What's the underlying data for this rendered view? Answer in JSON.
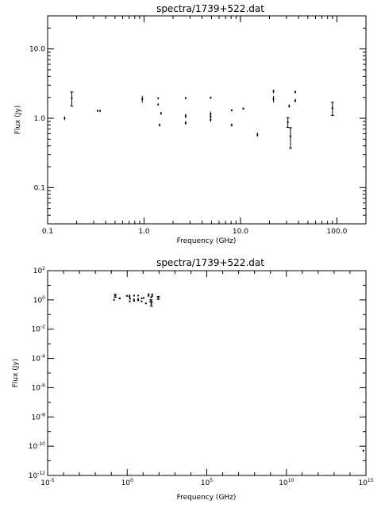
{
  "chart_data": [
    {
      "type": "scatter",
      "title": "spectra/1739+522.dat",
      "xlabel": "Frequency (GHz)",
      "ylabel": "Flux (Jy)",
      "xscale": "log",
      "yscale": "log",
      "xlim": [
        0.1,
        200
      ],
      "ylim": [
        0.03,
        30
      ],
      "xtick_labels": [
        "0.1",
        "1.0",
        "10.0",
        "100.0"
      ],
      "xtick_values": [
        0.1,
        1,
        10,
        100
      ],
      "ytick_labels": [
        "0.1",
        "1.0",
        "10.0"
      ],
      "ytick_values": [
        0.1,
        1,
        10
      ],
      "series": [
        {
          "points": [
            {
              "x": 0.15,
              "y": 1.0,
              "err": 0.06
            },
            {
              "x": 0.178,
              "y": 1.95,
              "err": 0.45
            },
            {
              "x": 0.33,
              "y": 1.28,
              "err": 0.03
            },
            {
              "x": 0.35,
              "y": 1.28,
              "err": 0.03
            },
            {
              "x": 0.96,
              "y": 1.9,
              "err": 0.2
            },
            {
              "x": 1.4,
              "y": 1.95,
              "err": 0.05
            },
            {
              "x": 1.4,
              "y": 1.58,
              "err": 0.05
            },
            {
              "x": 1.45,
              "y": 0.8,
              "err": 0.04
            },
            {
              "x": 1.5,
              "y": 1.18,
              "err": 0.05
            },
            {
              "x": 2.7,
              "y": 1.95,
              "err": 0.06
            },
            {
              "x": 2.7,
              "y": 1.08,
              "err": 0.08
            },
            {
              "x": 2.7,
              "y": 0.86,
              "err": 0.05
            },
            {
              "x": 4.9,
              "y": 1.98,
              "err": 0.07
            },
            {
              "x": 4.9,
              "y": 1.15,
              "err": 0.1
            },
            {
              "x": 4.9,
              "y": 1.05,
              "err": 0.08
            },
            {
              "x": 4.9,
              "y": 0.95,
              "err": 0.06
            },
            {
              "x": 8.1,
              "y": 1.3,
              "err": 0.04
            },
            {
              "x": 8.1,
              "y": 0.8,
              "err": 0.04
            },
            {
              "x": 10.7,
              "y": 1.38,
              "err": 0.05
            },
            {
              "x": 15.0,
              "y": 0.58,
              "err": 0.04
            },
            {
              "x": 22.0,
              "y": 2.45,
              "err": 0.15
            },
            {
              "x": 22.0,
              "y": 1.9,
              "err": 0.2
            },
            {
              "x": 31.0,
              "y": 0.88,
              "err": 0.14
            },
            {
              "x": 32.0,
              "y": 1.5,
              "err": 0.08
            },
            {
              "x": 33.0,
              "y": 0.55,
              "err": 0.18
            },
            {
              "x": 37.0,
              "y": 2.4,
              "err": 0.1
            },
            {
              "x": 37.0,
              "y": 1.8,
              "err": 0.1
            },
            {
              "x": 90.0,
              "y": 1.4,
              "err": 0.3
            }
          ]
        }
      ]
    },
    {
      "type": "scatter",
      "title": "spectra/1739+522.dat",
      "xlabel": "Frequency (GHz)",
      "ylabel": "Flux (Jy)",
      "xscale": "log",
      "yscale": "log",
      "xlim": [
        1e-05,
        1000000000000000.0
      ],
      "ylim": [
        1e-12,
        100
      ],
      "xtick_labels": [
        {
          "base": "10",
          "exp": "-5"
        },
        {
          "base": "10",
          "exp": "0"
        },
        {
          "base": "10",
          "exp": "5"
        },
        {
          "base": "10",
          "exp": "10"
        },
        {
          "base": "10",
          "exp": "15"
        }
      ],
      "xtick_values": [
        1e-05,
        1,
        100000.0,
        10000000000.0,
        1000000000000000.0
      ],
      "ytick_labels": [
        {
          "base": "10",
          "exp": "2"
        },
        {
          "base": "10",
          "exp": "0"
        },
        {
          "base": "10",
          "exp": "-2"
        },
        {
          "base": "10",
          "exp": "-4"
        },
        {
          "base": "10",
          "exp": "-6"
        },
        {
          "base": "10",
          "exp": "-8"
        },
        {
          "base": "10",
          "exp": "-10"
        },
        {
          "base": "10",
          "exp": "-12"
        }
      ],
      "ytick_values": [
        100,
        1,
        0.01,
        0.0001,
        1e-06,
        1e-08,
        1e-10,
        1e-12
      ],
      "series": [
        {
          "points": [
            {
              "x": 0.15,
              "y": 1.0,
              "err": 0.06
            },
            {
              "x": 0.178,
              "y": 1.95,
              "err": 0.45
            },
            {
              "x": 0.33,
              "y": 1.28,
              "err": 0.03
            },
            {
              "x": 0.35,
              "y": 1.28,
              "err": 0.03
            },
            {
              "x": 0.96,
              "y": 1.9,
              "err": 0.2
            },
            {
              "x": 1.4,
              "y": 1.95,
              "err": 0.05
            },
            {
              "x": 1.4,
              "y": 1.58,
              "err": 0.05
            },
            {
              "x": 1.45,
              "y": 0.8,
              "err": 0.04
            },
            {
              "x": 1.5,
              "y": 1.18,
              "err": 0.05
            },
            {
              "x": 2.7,
              "y": 1.95,
              "err": 0.06
            },
            {
              "x": 2.7,
              "y": 1.08,
              "err": 0.08
            },
            {
              "x": 2.7,
              "y": 0.86,
              "err": 0.05
            },
            {
              "x": 4.9,
              "y": 1.98,
              "err": 0.07
            },
            {
              "x": 4.9,
              "y": 1.15,
              "err": 0.1
            },
            {
              "x": 4.9,
              "y": 1.05,
              "err": 0.08
            },
            {
              "x": 4.9,
              "y": 0.95,
              "err": 0.06
            },
            {
              "x": 8.1,
              "y": 1.3,
              "err": 0.04
            },
            {
              "x": 8.1,
              "y": 0.8,
              "err": 0.04
            },
            {
              "x": 10.7,
              "y": 1.38,
              "err": 0.05
            },
            {
              "x": 15.0,
              "y": 0.58,
              "err": 0.04
            },
            {
              "x": 22.0,
              "y": 2.45,
              "err": 0.15
            },
            {
              "x": 22.0,
              "y": 1.9,
              "err": 0.2
            },
            {
              "x": 31.0,
              "y": 0.88,
              "err": 0.14
            },
            {
              "x": 32.0,
              "y": 1.5,
              "err": 0.08
            },
            {
              "x": 33.0,
              "y": 0.55,
              "err": 0.18
            },
            {
              "x": 37.0,
              "y": 2.4,
              "err": 0.1
            },
            {
              "x": 37.0,
              "y": 1.8,
              "err": 0.1
            },
            {
              "x": 90.0,
              "y": 1.4,
              "err": 0.3
            },
            {
              "x": 700000000000000.0,
              "y": 5e-11,
              "err": 0
            }
          ]
        }
      ]
    }
  ]
}
